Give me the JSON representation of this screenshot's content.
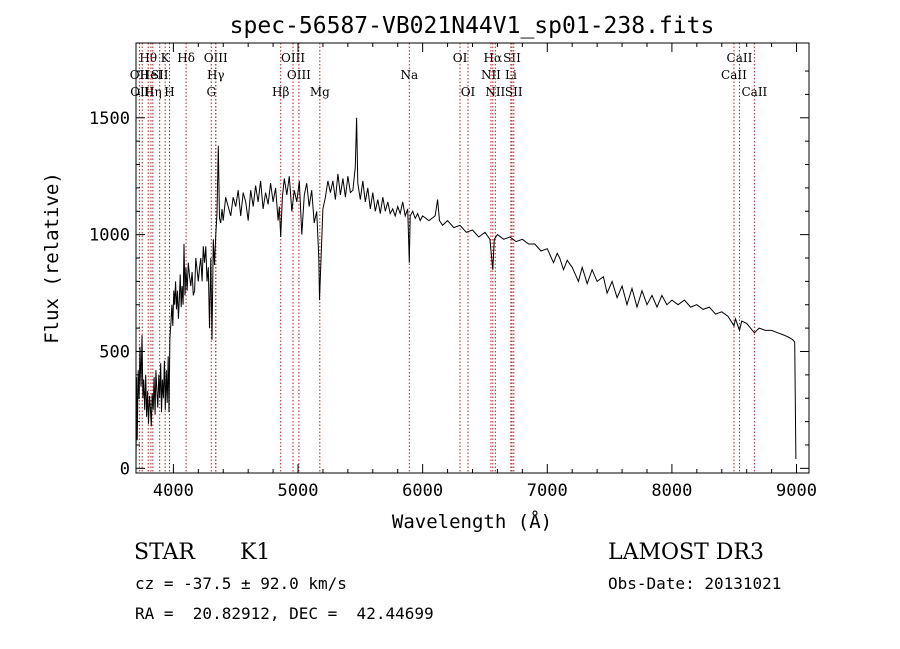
{
  "chart_data": {
    "type": "line",
    "title": "spec-56587-VB021N44V1_sp01-238.fits",
    "xlabel": "Wavelength (Å)",
    "ylabel": "Flux (relative)",
    "xlim": [
      3700,
      9100
    ],
    "ylim": [
      -20,
      1820
    ],
    "xticks": [
      4000,
      5000,
      6000,
      7000,
      8000,
      9000
    ],
    "yticks": [
      0,
      500,
      1000,
      1500
    ],
    "series": [
      {
        "name": "spectrum",
        "points": [
          [
            3700,
            20
          ],
          [
            3705,
            390
          ],
          [
            3710,
            120
          ],
          [
            3718,
            420
          ],
          [
            3725,
            300
          ],
          [
            3732,
            520
          ],
          [
            3740,
            350
          ],
          [
            3748,
            570
          ],
          [
            3755,
            300
          ],
          [
            3762,
            380
          ],
          [
            3770,
            250
          ],
          [
            3778,
            400
          ],
          [
            3785,
            220
          ],
          [
            3793,
            330
          ],
          [
            3800,
            190
          ],
          [
            3808,
            310
          ],
          [
            3815,
            260
          ],
          [
            3823,
            180
          ],
          [
            3830,
            320
          ],
          [
            3838,
            250
          ],
          [
            3845,
            390
          ],
          [
            3853,
            230
          ],
          [
            3860,
            420
          ],
          [
            3868,
            330
          ],
          [
            3875,
            260
          ],
          [
            3883,
            400
          ],
          [
            3890,
            300
          ],
          [
            3898,
            450
          ],
          [
            3905,
            240
          ],
          [
            3912,
            380
          ],
          [
            3920,
            300
          ],
          [
            3928,
            460
          ],
          [
            3935,
            250
          ],
          [
            3943,
            420
          ],
          [
            3950,
            280
          ],
          [
            3958,
            480
          ],
          [
            3965,
            240
          ],
          [
            3972,
            560
          ],
          [
            3980,
            620
          ],
          [
            3988,
            700
          ],
          [
            3995,
            610
          ],
          [
            4003,
            760
          ],
          [
            4010,
            700
          ],
          [
            4018,
            800
          ],
          [
            4025,
            680
          ],
          [
            4033,
            760
          ],
          [
            4040,
            640
          ],
          [
            4048,
            730
          ],
          [
            4055,
            830
          ],
          [
            4063,
            690
          ],
          [
            4070,
            780
          ],
          [
            4078,
            700
          ],
          [
            4085,
            960
          ],
          [
            4093,
            740
          ],
          [
            4100,
            860
          ],
          [
            4110,
            760
          ],
          [
            4120,
            880
          ],
          [
            4130,
            820
          ],
          [
            4140,
            780
          ],
          [
            4150,
            840
          ],
          [
            4160,
            740
          ],
          [
            4170,
            760
          ],
          [
            4180,
            900
          ],
          [
            4190,
            850
          ],
          [
            4200,
            800
          ],
          [
            4210,
            860
          ],
          [
            4220,
            900
          ],
          [
            4230,
            800
          ],
          [
            4240,
            950
          ],
          [
            4250,
            880
          ],
          [
            4260,
            950
          ],
          [
            4270,
            800
          ],
          [
            4280,
            860
          ],
          [
            4290,
            600
          ],
          [
            4300,
            900
          ],
          [
            4310,
            550
          ],
          [
            4320,
            980
          ],
          [
            4330,
            870
          ],
          [
            4340,
            1000
          ],
          [
            4350,
            1090
          ],
          [
            4360,
            1380
          ],
          [
            4370,
            1070
          ],
          [
            4380,
            1050
          ],
          [
            4390,
            1110
          ],
          [
            4400,
            1060
          ],
          [
            4420,
            1160
          ],
          [
            4440,
            1120
          ],
          [
            4460,
            1080
          ],
          [
            4480,
            1160
          ],
          [
            4500,
            1120
          ],
          [
            4520,
            1190
          ],
          [
            4540,
            1080
          ],
          [
            4560,
            1180
          ],
          [
            4580,
            1140
          ],
          [
            4600,
            1060
          ],
          [
            4620,
            1190
          ],
          [
            4640,
            1120
          ],
          [
            4660,
            1210
          ],
          [
            4680,
            1140
          ],
          [
            4700,
            1230
          ],
          [
            4720,
            1110
          ],
          [
            4740,
            1180
          ],
          [
            4760,
            1130
          ],
          [
            4780,
            1220
          ],
          [
            4800,
            1140
          ],
          [
            4820,
            1200
          ],
          [
            4840,
            1060
          ],
          [
            4850,
            1120
          ],
          [
            4861,
            990
          ],
          [
            4875,
            1160
          ],
          [
            4890,
            1240
          ],
          [
            4910,
            1170
          ],
          [
            4930,
            1250
          ],
          [
            4950,
            1100
          ],
          [
            4970,
            1190
          ],
          [
            4990,
            1140
          ],
          [
            5010,
            1230
          ],
          [
            5030,
            1000
          ],
          [
            5050,
            1170
          ],
          [
            5070,
            1220
          ],
          [
            5090,
            1120
          ],
          [
            5110,
            1190
          ],
          [
            5130,
            1050
          ],
          [
            5150,
            1100
          ],
          [
            5167,
            900
          ],
          [
            5172,
            720
          ],
          [
            5183,
            870
          ],
          [
            5200,
            1110
          ],
          [
            5220,
            1160
          ],
          [
            5240,
            1230
          ],
          [
            5260,
            1180
          ],
          [
            5280,
            1230
          ],
          [
            5300,
            1150
          ],
          [
            5320,
            1260
          ],
          [
            5340,
            1170
          ],
          [
            5360,
            1240
          ],
          [
            5380,
            1160
          ],
          [
            5400,
            1250
          ],
          [
            5420,
            1180
          ],
          [
            5440,
            1190
          ],
          [
            5460,
            1290
          ],
          [
            5470,
            1500
          ],
          [
            5480,
            1220
          ],
          [
            5500,
            1150
          ],
          [
            5520,
            1230
          ],
          [
            5540,
            1140
          ],
          [
            5560,
            1200
          ],
          [
            5580,
            1110
          ],
          [
            5600,
            1180
          ],
          [
            5620,
            1100
          ],
          [
            5640,
            1150
          ],
          [
            5660,
            1090
          ],
          [
            5680,
            1160
          ],
          [
            5700,
            1100
          ],
          [
            5720,
            1140
          ],
          [
            5740,
            1090
          ],
          [
            5760,
            1110
          ],
          [
            5780,
            1080
          ],
          [
            5800,
            1120
          ],
          [
            5820,
            1090
          ],
          [
            5840,
            1140
          ],
          [
            5860,
            1080
          ],
          [
            5880,
            1110
          ],
          [
            5893,
            880
          ],
          [
            5900,
            1080
          ],
          [
            5920,
            1100
          ],
          [
            5940,
            1070
          ],
          [
            5960,
            1090
          ],
          [
            5980,
            1060
          ],
          [
            6000,
            1080
          ],
          [
            6050,
            1060
          ],
          [
            6100,
            1080
          ],
          [
            6120,
            1150
          ],
          [
            6135,
            1060
          ],
          [
            6160,
            1040
          ],
          [
            6200,
            1060
          ],
          [
            6250,
            1030
          ],
          [
            6300,
            1040
          ],
          [
            6350,
            1010
          ],
          [
            6400,
            1020
          ],
          [
            6450,
            990
          ],
          [
            6500,
            1010
          ],
          [
            6540,
            980
          ],
          [
            6563,
            850
          ],
          [
            6575,
            980
          ],
          [
            6600,
            1000
          ],
          [
            6650,
            980
          ],
          [
            6700,
            990
          ],
          [
            6750,
            970
          ],
          [
            6800,
            980
          ],
          [
            6850,
            960
          ],
          [
            6900,
            960
          ],
          [
            6950,
            930
          ],
          [
            7000,
            940
          ],
          [
            7050,
            880
          ],
          [
            7080,
            920
          ],
          [
            7100,
            900
          ],
          [
            7130,
            850
          ],
          [
            7160,
            890
          ],
          [
            7200,
            860
          ],
          [
            7250,
            800
          ],
          [
            7280,
            860
          ],
          [
            7320,
            790
          ],
          [
            7360,
            850
          ],
          [
            7400,
            800
          ],
          [
            7450,
            820
          ],
          [
            7480,
            750
          ],
          [
            7520,
            800
          ],
          [
            7560,
            730
          ],
          [
            7600,
            780
          ],
          [
            7640,
            700
          ],
          [
            7680,
            770
          ],
          [
            7720,
            690
          ],
          [
            7760,
            760
          ],
          [
            7800,
            700
          ],
          [
            7840,
            740
          ],
          [
            7880,
            690
          ],
          [
            7920,
            740
          ],
          [
            7960,
            700
          ],
          [
            8000,
            720
          ],
          [
            8050,
            700
          ],
          [
            8100,
            720
          ],
          [
            8150,
            690
          ],
          [
            8200,
            700
          ],
          [
            8250,
            680
          ],
          [
            8300,
            690
          ],
          [
            8350,
            660
          ],
          [
            8400,
            670
          ],
          [
            8450,
            650
          ],
          [
            8498,
            610
          ],
          [
            8510,
            640
          ],
          [
            8542,
            590
          ],
          [
            8560,
            630
          ],
          [
            8600,
            620
          ],
          [
            8662,
            580
          ],
          [
            8700,
            600
          ],
          [
            8750,
            590
          ],
          [
            8800,
            590
          ],
          [
            8850,
            580
          ],
          [
            8900,
            570
          ],
          [
            8940,
            560
          ],
          [
            8970,
            550
          ],
          [
            8985,
            540
          ],
          [
            8995,
            40
          ]
        ]
      }
    ],
    "lines": [
      {
        "name": "Hθ",
        "x": 3798,
        "row": 0
      },
      {
        "name": "OII",
        "x": 3727,
        "row": 1
      },
      {
        "name": "OIII",
        "x": 3750,
        "row": 2
      },
      {
        "name": "HeI",
        "x": 3820,
        "row": 1
      },
      {
        "name": "Hη",
        "x": 3835,
        "row": 2
      },
      {
        "name": "K",
        "x": 3934,
        "row": 0
      },
      {
        "name": "SII",
        "x": 3890,
        "row": 1
      },
      {
        "name": "H",
        "x": 3969,
        "row": 2
      },
      {
        "name": "Hδ",
        "x": 4102,
        "row": 0
      },
      {
        "name": "OIII",
        "x": 4340,
        "row": 0
      },
      {
        "name": "Hγ",
        "x": 4340,
        "row": 1
      },
      {
        "name": "G",
        "x": 4304,
        "row": 2
      },
      {
        "name": "OIII",
        "x": 4960,
        "row": 0
      },
      {
        "name": "OIII",
        "x": 5007,
        "row": 1
      },
      {
        "name": "Hβ",
        "x": 4861,
        "row": 2
      },
      {
        "name": "Mg",
        "x": 5175,
        "row": 2
      },
      {
        "name": "Na",
        "x": 5893,
        "row": 1
      },
      {
        "name": "OI",
        "x": 6300,
        "row": 0
      },
      {
        "name": "OI",
        "x": 6364,
        "row": 2
      },
      {
        "name": "Hα",
        "x": 6563,
        "row": 0
      },
      {
        "name": "NII",
        "x": 6548,
        "row": 1
      },
      {
        "name": "NII",
        "x": 6583,
        "row": 2
      },
      {
        "name": "SII",
        "x": 6717,
        "row": 0
      },
      {
        "name": "Li",
        "x": 6708,
        "row": 1
      },
      {
        "name": "SII",
        "x": 6731,
        "row": 2
      },
      {
        "name": "CaII",
        "x": 8542,
        "row": 0
      },
      {
        "name": "CaII",
        "x": 8498,
        "row": 1
      },
      {
        "name": "CaII",
        "x": 8662,
        "row": 2
      }
    ]
  },
  "info": {
    "object_class": "STAR",
    "subclass": "K1",
    "survey": "LAMOST DR3",
    "velocity": "cz = -37.5 ± 92.0 km/s",
    "obs_date": "Obs-Date: 20131021",
    "coords": "RA =  20.82912, DEC =  42.44699"
  },
  "colors": {
    "line_marker": "#b22222",
    "spectrum": "#000000"
  }
}
